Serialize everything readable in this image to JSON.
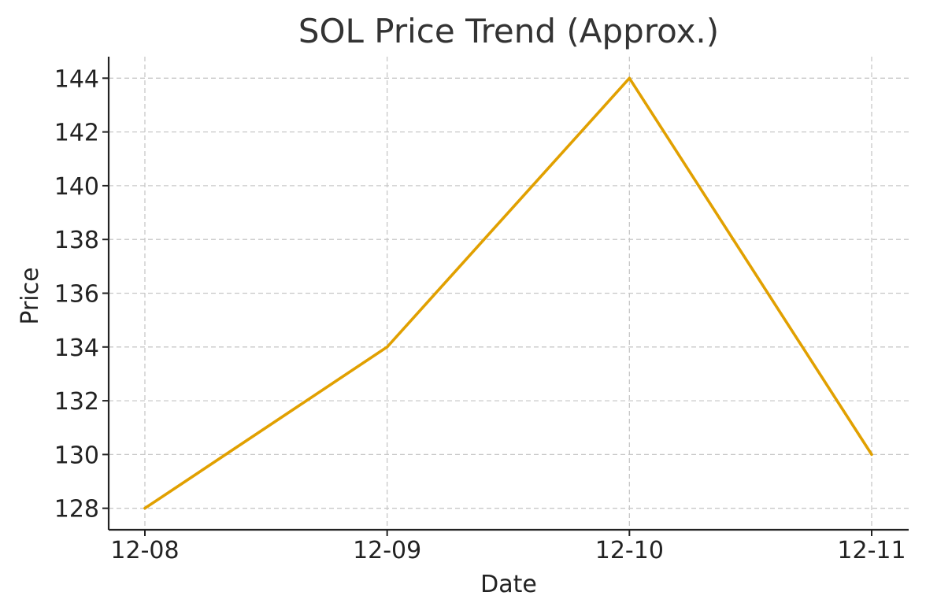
{
  "chart_data": {
    "type": "line",
    "title": "SOL Price Trend (Approx.)",
    "xlabel": "Date",
    "ylabel": "Price",
    "categories": [
      "12-08",
      "12-09",
      "12-10",
      "12-11"
    ],
    "series": [
      {
        "values": [
          128,
          134,
          144,
          130
        ],
        "color": "#E1A000"
      }
    ],
    "yticks": [
      128,
      130,
      132,
      134,
      136,
      138,
      140,
      142,
      144
    ],
    "ylim": [
      127.2,
      144.8
    ],
    "grid": true,
    "legend": "none"
  }
}
